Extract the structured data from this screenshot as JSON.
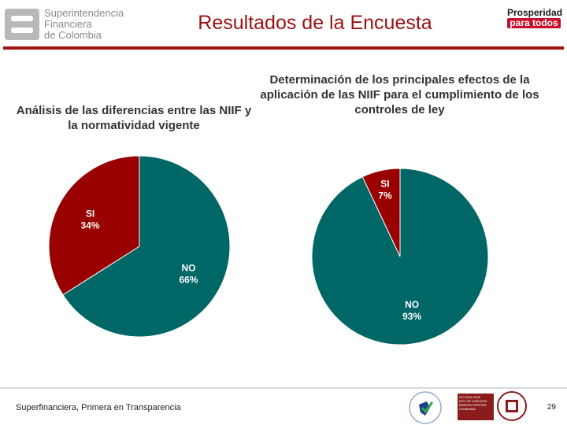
{
  "header": {
    "org_name": [
      "Superintendencia",
      "Financiera",
      "de Colombia"
    ],
    "title": "Resultados de la Encuesta",
    "right_logo": [
      "Prosperidad",
      "para todos"
    ]
  },
  "chart_data": [
    {
      "type": "pie",
      "title": "Análisis de las diferencias entre las NIIF y la normatividad vigente",
      "slices": [
        {
          "label": "NO",
          "value": 66,
          "display": "66%",
          "color": "#006666"
        },
        {
          "label": "SI",
          "value": 34,
          "display": "34%",
          "color": "#990000"
        }
      ]
    },
    {
      "type": "pie",
      "title": "Determinación de los principales efectos de la aplicación de las NIIF para el cumplimiento de los controles de ley",
      "slices": [
        {
          "label": "NO",
          "value": 93,
          "display": "93%",
          "color": "#006666"
        },
        {
          "label": "SI",
          "value": 7,
          "display": "7%",
          "color": "#990000"
        }
      ]
    }
  ],
  "footer": {
    "tagline": "Superfinanciera, Primera en Transparencia",
    "page_number": "29",
    "cert_text": [
      "ISO 9001:2008",
      "NTC GP 1000:2009",
      "BUREAU VERITAS",
      "Certification"
    ]
  }
}
